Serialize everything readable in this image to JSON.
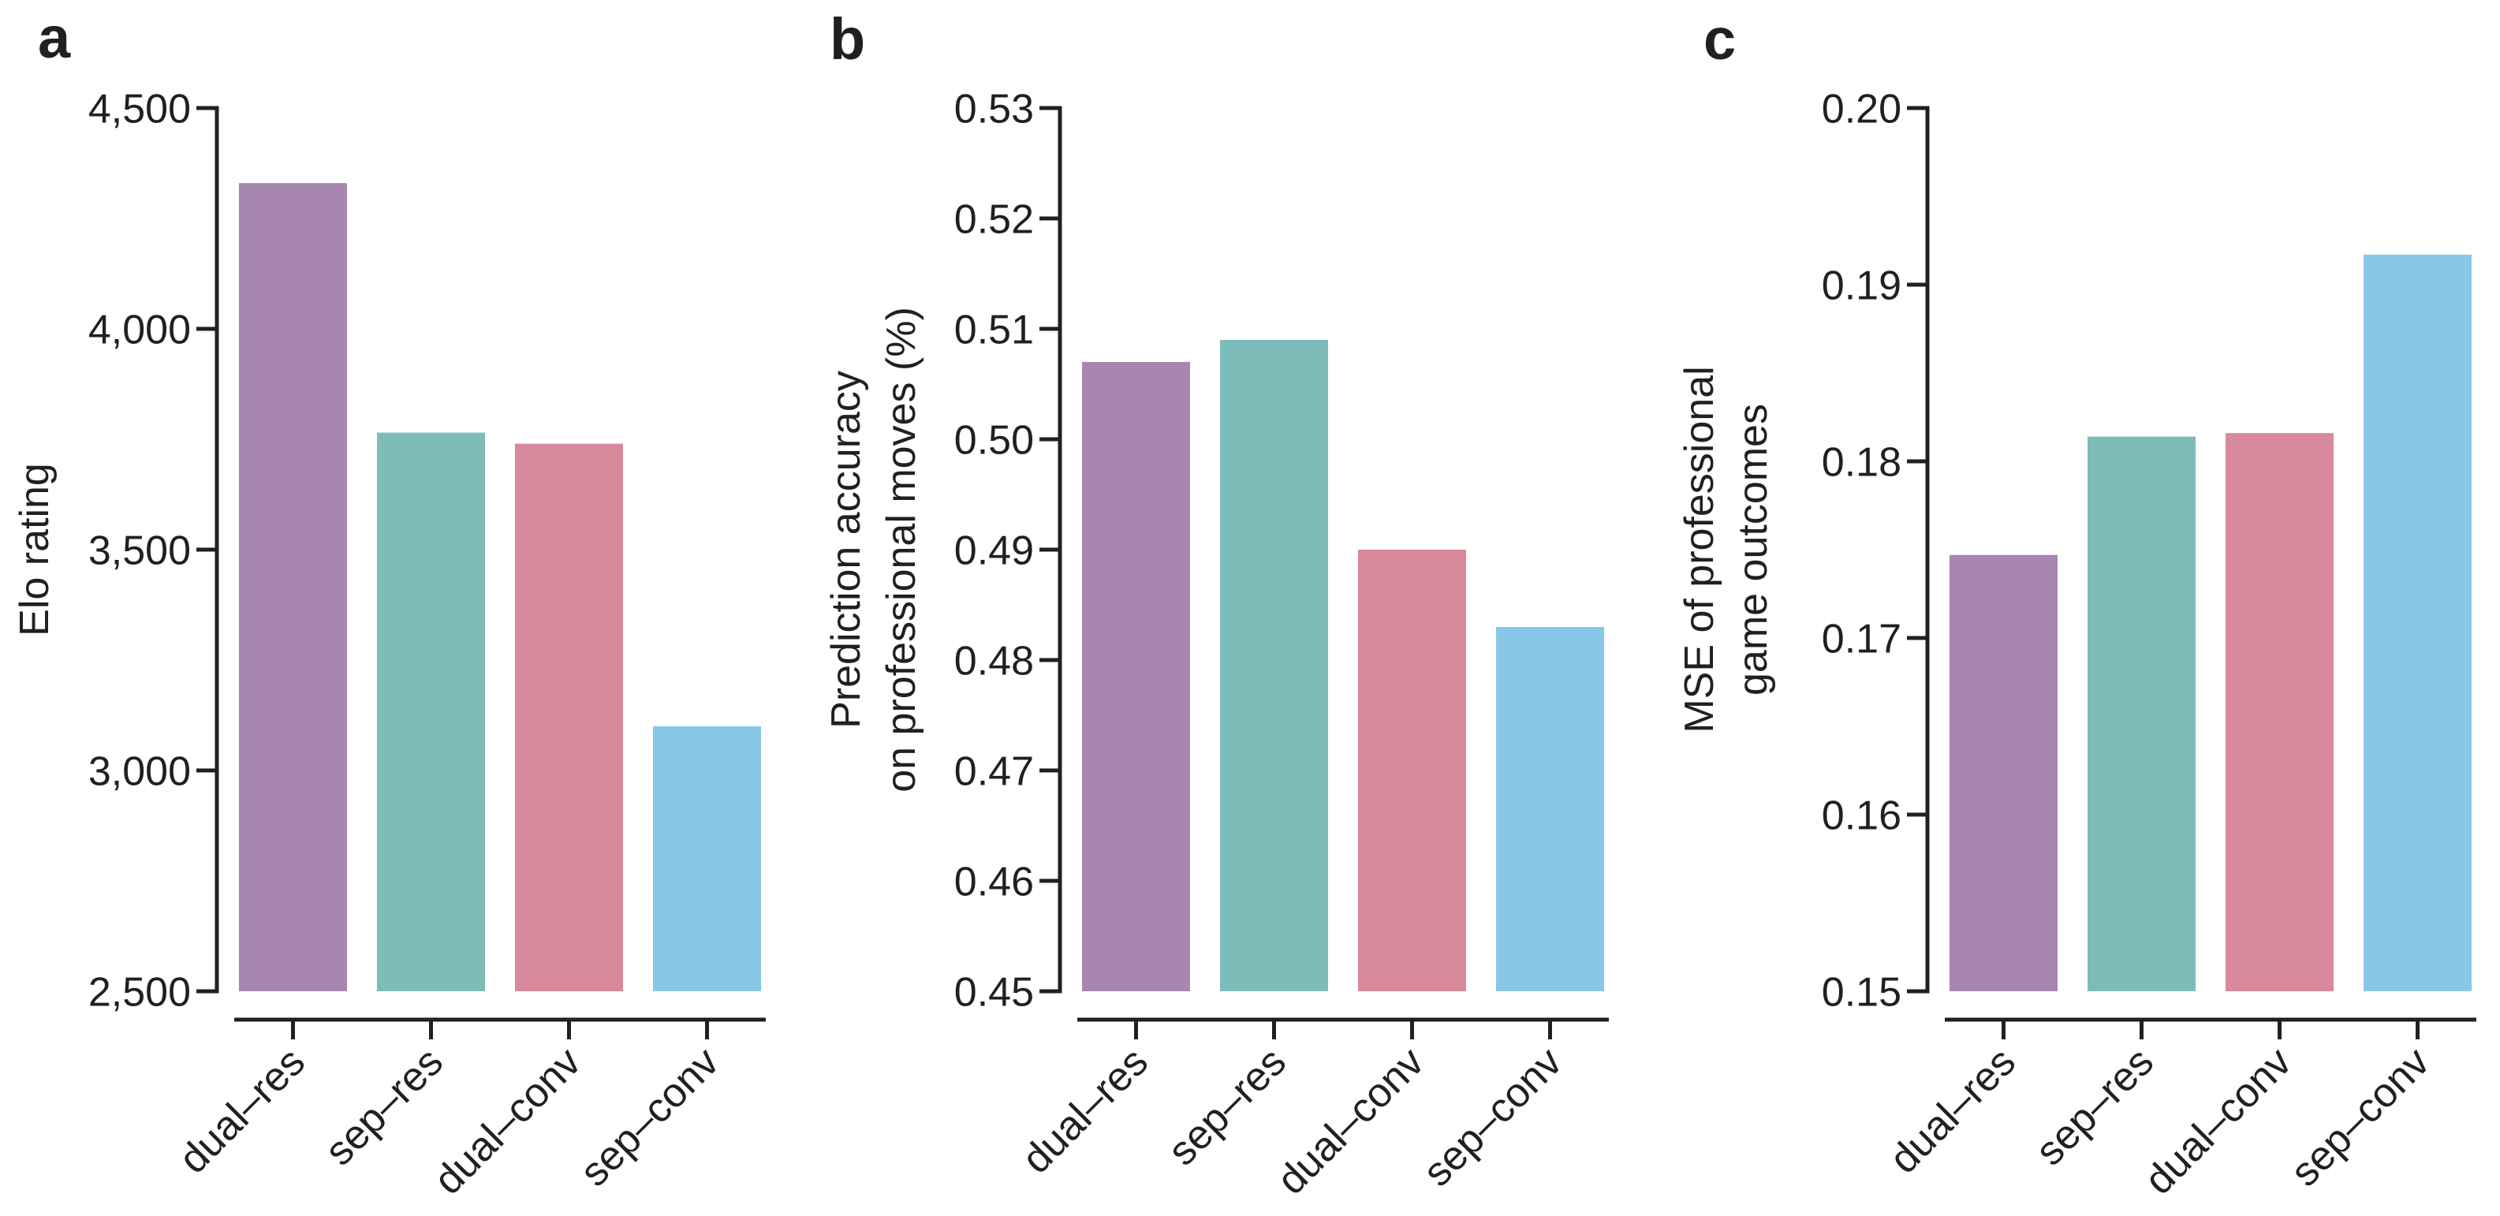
{
  "style": {
    "background": "#ffffff",
    "axis_color": "#231f20",
    "text_color": "#231f20",
    "palette": [
      "#a786b0",
      "#7ebcb9",
      "#d9899c",
      "#88c8e6"
    ]
  },
  "chart_data": [
    {
      "type": "bar",
      "panel_label": "a",
      "ylabel_lines": [
        "Elo rating"
      ],
      "xlabel": "",
      "categories": [
        "dual–res",
        "sep–res",
        "dual–conv",
        "sep–conv"
      ],
      "values": [
        4330,
        3765,
        3740,
        3100
      ],
      "ylim": [
        2500,
        4500
      ],
      "yticks": [
        2500,
        3000,
        3500,
        4000,
        4500
      ],
      "ytick_labels": [
        "2,500",
        "3,000",
        "3,500",
        "4,000",
        "4,500"
      ],
      "grid": false,
      "legend": "none",
      "bar_colors": [
        "#a786b0",
        "#7ebcb9",
        "#d9899c",
        "#88c8e6"
      ]
    },
    {
      "type": "bar",
      "panel_label": "b",
      "ylabel_lines": [
        "Prediction accuracy",
        "on professional moves (%)"
      ],
      "xlabel": "",
      "categories": [
        "dual–res",
        "sep–res",
        "dual–conv",
        "sep–conv"
      ],
      "values": [
        0.507,
        0.509,
        0.49,
        0.483
      ],
      "ylim": [
        0.45,
        0.53
      ],
      "yticks": [
        0.45,
        0.46,
        0.47,
        0.48,
        0.49,
        0.5,
        0.51,
        0.52,
        0.53
      ],
      "ytick_labels": [
        "0.45",
        "0.46",
        "0.47",
        "0.48",
        "0.49",
        "0.50",
        "0.51",
        "0.52",
        "0.53"
      ],
      "grid": false,
      "legend": "none",
      "bar_colors": [
        "#a786b0",
        "#7ebcb9",
        "#d9899c",
        "#88c8e6"
      ]
    },
    {
      "type": "bar",
      "panel_label": "c",
      "ylabel_lines": [
        "MSE of professional",
        "game outcomes"
      ],
      "xlabel": "",
      "categories": [
        "dual–res",
        "sep–res",
        "dual–conv",
        "sep–conv"
      ],
      "values": [
        0.1747,
        0.1814,
        0.1816,
        0.1917
      ],
      "ylim": [
        0.15,
        0.2
      ],
      "yticks": [
        0.15,
        0.16,
        0.17,
        0.18,
        0.19,
        0.2
      ],
      "ytick_labels": [
        "0.15",
        "0.16",
        "0.17",
        "0.18",
        "0.19",
        "0.20"
      ],
      "grid": false,
      "legend": "none",
      "bar_colors": [
        "#a786b0",
        "#7ebcb9",
        "#d9899c",
        "#88c8e6"
      ]
    }
  ]
}
